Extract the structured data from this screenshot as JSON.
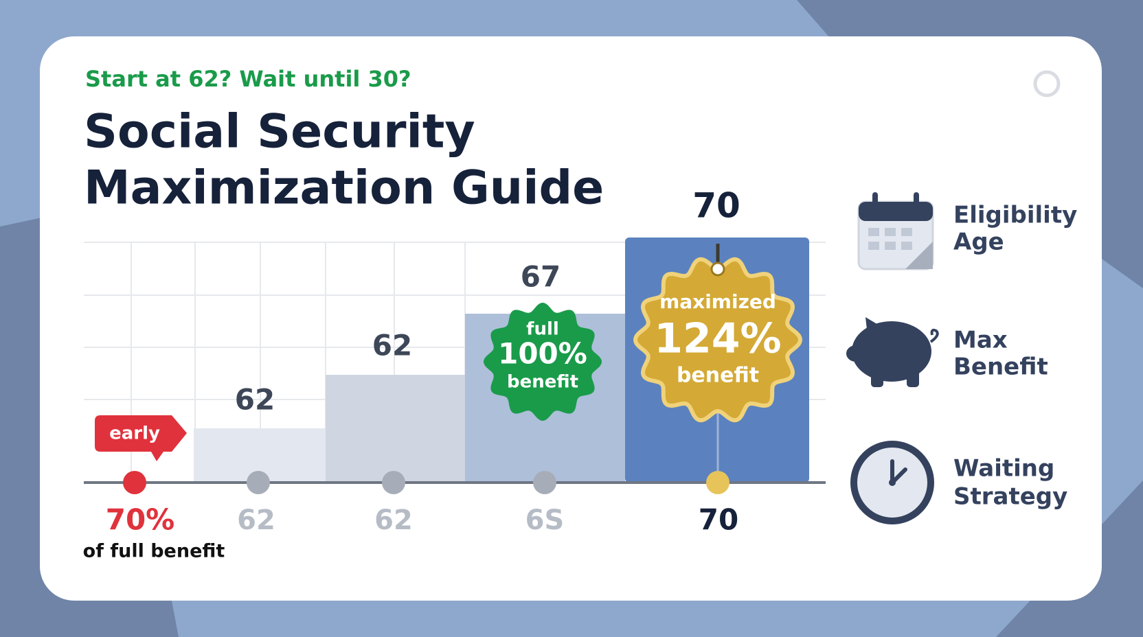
{
  "header": {
    "kicker": "Start at 62? Wait until 30?",
    "title_lines": [
      "Social Security",
      "Maximization Guide"
    ]
  },
  "timeline": {
    "early_tag": "early",
    "steps": [
      {
        "bottom": "70%",
        "note": "of full benefit"
      },
      {
        "top": "62",
        "bottom": "62"
      },
      {
        "top": "62",
        "bottom": "62"
      },
      {
        "top": "67",
        "bottom": "6S",
        "badge": [
          "full",
          "100%",
          "benefit"
        ]
      },
      {
        "top": "70",
        "bottom": "70",
        "badge": [
          "maximized",
          "124%",
          "benefit"
        ]
      }
    ]
  },
  "sidebar": [
    {
      "lines": [
        "Eligibility",
        "Age"
      ]
    },
    {
      "lines": [
        "Max",
        "Benefit"
      ]
    },
    {
      "lines": [
        "Waiting",
        "Strategy"
      ]
    }
  ]
}
